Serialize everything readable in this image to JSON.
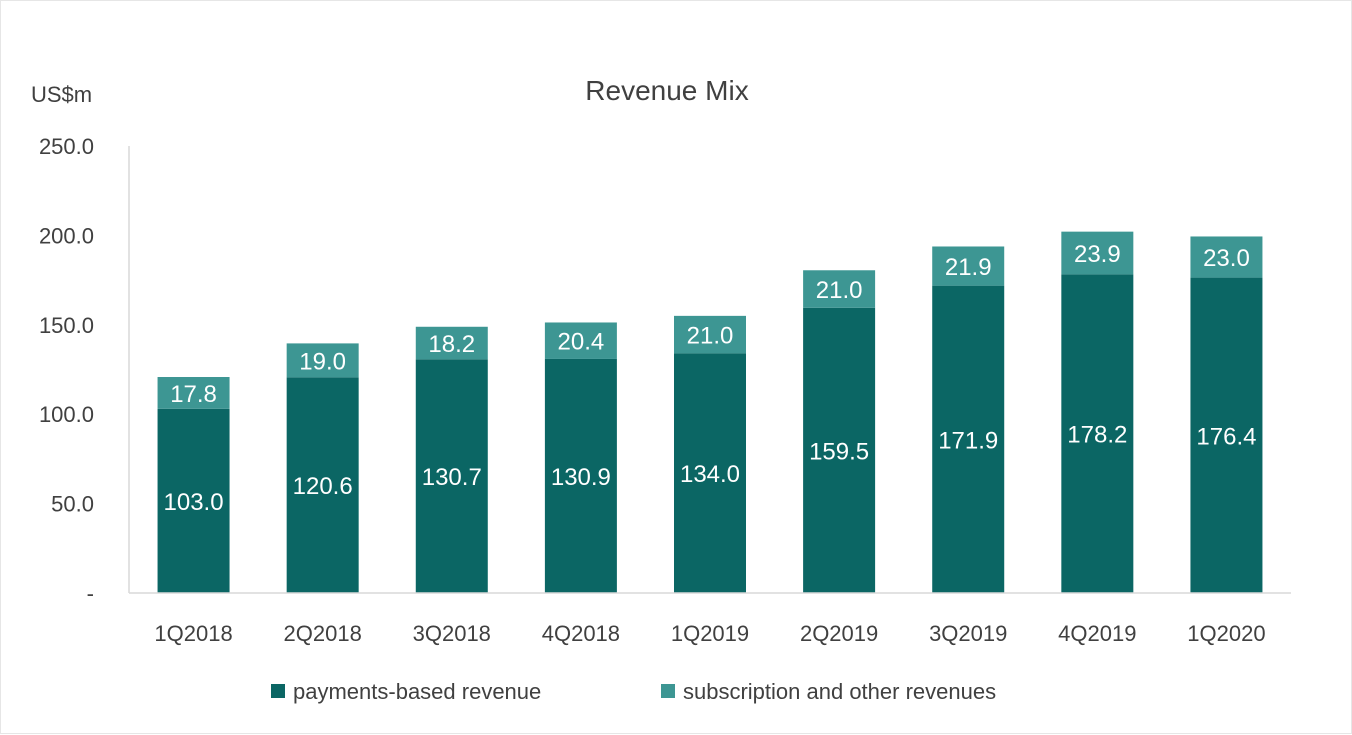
{
  "chart_data": {
    "type": "bar",
    "stacked": true,
    "title": "Revenue Mix",
    "ylabel": "US$m",
    "xlabel": "",
    "ylim": [
      0,
      250
    ],
    "yticks": [
      0,
      50,
      100,
      150,
      200,
      250
    ],
    "ytick_labels": [
      "-",
      "50.0",
      "100.0",
      "150.0",
      "200.0",
      "250.0"
    ],
    "categories": [
      "1Q2018",
      "2Q2018",
      "3Q2018",
      "4Q2018",
      "1Q2019",
      "2Q2019",
      "3Q2019",
      "4Q2019",
      "1Q2020"
    ],
    "series": [
      {
        "name": "payments-based revenue",
        "color": "#0b6664",
        "values": [
          103.0,
          120.6,
          130.7,
          130.9,
          134.0,
          159.5,
          171.9,
          178.2,
          176.4
        ],
        "labels": [
          "103.0",
          "120.6",
          "130.7",
          "130.9",
          "134.0",
          "159.5",
          "171.9",
          "178.2",
          "176.4"
        ]
      },
      {
        "name": "subscription and other revenues",
        "color": "#3d9693",
        "values": [
          17.8,
          19.0,
          18.2,
          20.4,
          21.0,
          21.0,
          21.9,
          23.9,
          23.0
        ],
        "labels": [
          "17.8",
          "19.0",
          "18.2",
          "20.4",
          "21.0",
          "21.0",
          "21.9",
          "23.9",
          "23.0"
        ]
      }
    ],
    "grid": false,
    "legend": "bottom"
  }
}
